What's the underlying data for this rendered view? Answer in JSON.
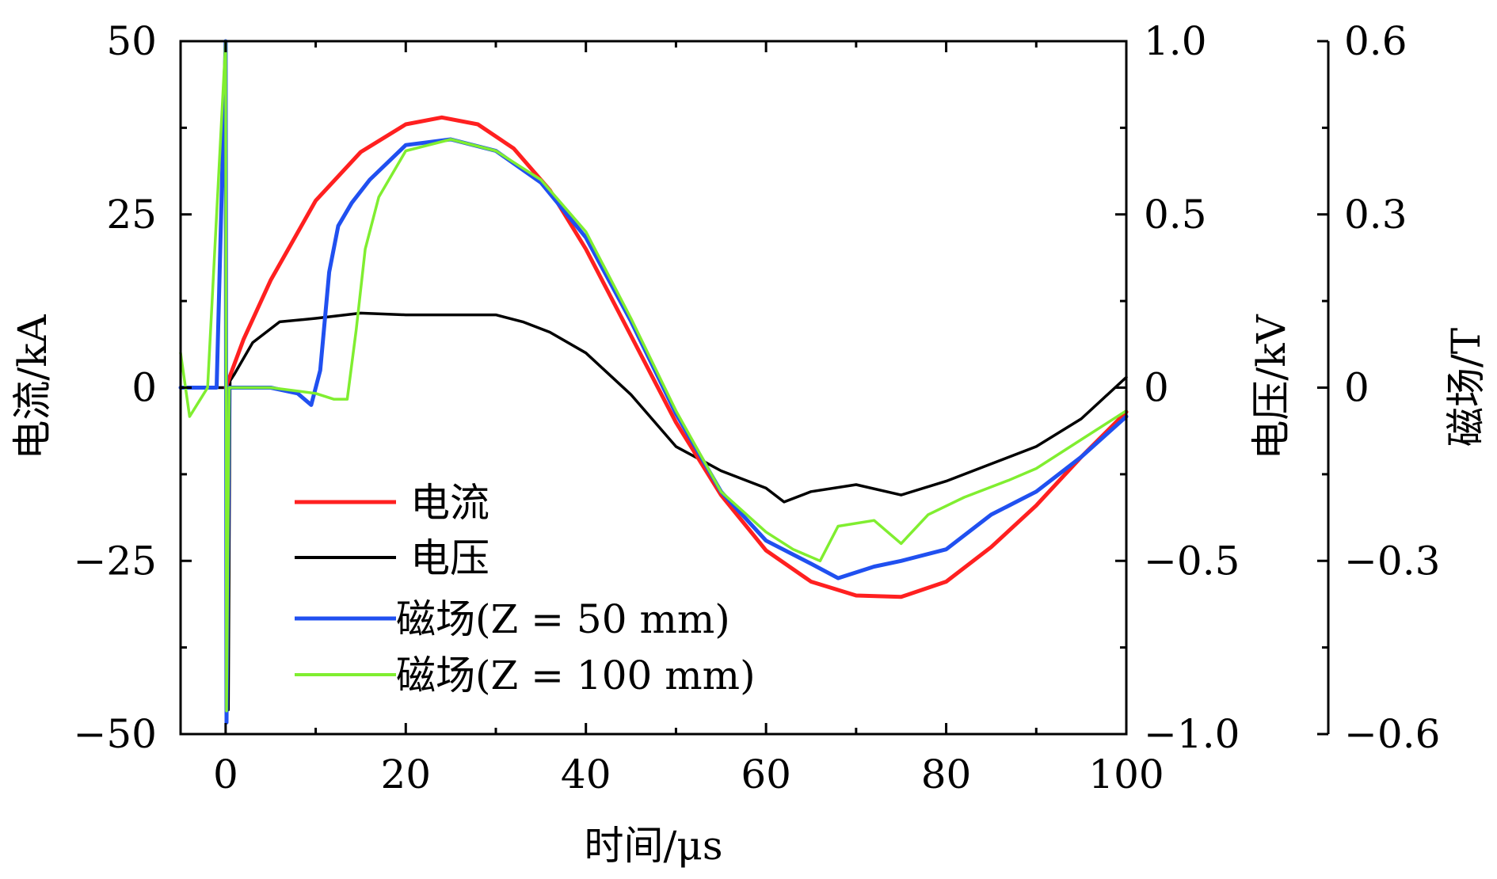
{
  "chart_data": {
    "type": "line",
    "xlabel": "时间/μs",
    "xlim": [
      -5,
      100
    ],
    "x_ticks": [
      "0",
      "20",
      "40",
      "60",
      "80",
      "100"
    ],
    "x_tick_values": [
      0,
      20,
      40,
      60,
      80,
      100
    ],
    "y_axes": [
      {
        "id": "current",
        "label": "电流/kA",
        "lim": [
          -50,
          50
        ],
        "tick_values": [
          -50,
          -25,
          0,
          25,
          50
        ],
        "tick_labels": [
          "−50",
          "−25",
          "0",
          "25",
          "50"
        ],
        "side": "left"
      },
      {
        "id": "voltage",
        "label": "电压/kV",
        "lim": [
          -1.0,
          1.0
        ],
        "tick_values": [
          -1.0,
          -0.5,
          0,
          0.5,
          1.0
        ],
        "tick_labels": [
          "−1.0",
          "−0.5",
          "0",
          "0.5",
          "1.0"
        ],
        "side": "right"
      },
      {
        "id": "field",
        "label": "磁场/T",
        "lim": [
          -0.6,
          0.6
        ],
        "tick_values": [
          -0.6,
          -0.3,
          0,
          0.3,
          0.6
        ],
        "tick_labels": [
          "−0.6",
          "−0.3",
          "0",
          "0.3",
          "0.6"
        ],
        "side": "right-offset"
      }
    ],
    "legend_position": "lower-left",
    "series": [
      {
        "name": "电流",
        "axis": "current",
        "color": "#ff2020",
        "x": [
          0,
          2,
          5,
          10,
          15,
          20,
          24,
          28,
          32,
          36,
          40,
          45,
          50,
          55,
          60,
          65,
          70,
          75,
          80,
          85,
          90,
          95,
          100
        ],
        "y": [
          0,
          7,
          15.5,
          27,
          34,
          38,
          39,
          38,
          34.5,
          28.5,
          20,
          7.5,
          -5,
          -15.5,
          -23.5,
          -28,
          -30,
          -30.2,
          -28,
          -23,
          -17,
          -10,
          -3.5
        ]
      },
      {
        "name": "电压",
        "axis": "voltage",
        "color": "#000000",
        "x": [
          -5,
          0,
          0.3,
          0.5,
          1,
          3,
          6,
          10,
          15,
          20,
          25,
          30,
          33,
          36,
          40,
          45,
          50,
          55,
          60,
          62,
          65,
          70,
          75,
          80,
          85,
          90,
          95,
          100
        ],
        "y": [
          0,
          0,
          -0.93,
          0.02,
          0.04,
          0.13,
          0.19,
          0.2,
          0.215,
          0.21,
          0.21,
          0.21,
          0.19,
          0.16,
          0.1,
          -0.02,
          -0.17,
          -0.24,
          -0.29,
          -0.33,
          -0.3,
          -0.28,
          -0.31,
          -0.27,
          -0.22,
          -0.17,
          -0.09,
          0.03
        ]
      },
      {
        "name": "磁场(Z = 50 mm)",
        "axis": "field",
        "color": "#2050f0",
        "x": [
          -5,
          -1,
          0,
          0.1,
          0.4,
          1,
          5,
          8,
          9.5,
          10.5,
          11.5,
          12.5,
          14,
          16,
          20,
          25,
          30,
          35,
          40,
          45,
          50,
          55,
          60,
          65,
          68,
          72,
          75,
          80,
          85,
          90,
          95,
          100
        ],
        "y": [
          0,
          0,
          0.6,
          -0.58,
          0,
          0,
          0,
          -0.01,
          -0.03,
          0.03,
          0.2,
          0.28,
          0.32,
          0.36,
          0.42,
          0.43,
          0.41,
          0.355,
          0.26,
          0.115,
          -0.045,
          -0.18,
          -0.265,
          -0.305,
          -0.33,
          -0.31,
          -0.3,
          -0.28,
          -0.22,
          -0.18,
          -0.12,
          -0.05
        ]
      },
      {
        "name": "磁场(Z = 100 mm)",
        "axis": "field",
        "color": "#80ee30",
        "x": [
          -5,
          -4,
          -2,
          0,
          0.1,
          0.4,
          1,
          5,
          10,
          12,
          13.5,
          14.5,
          15.5,
          17,
          20,
          25,
          30,
          35,
          40,
          45,
          50,
          55,
          60,
          63,
          66,
          68,
          72,
          75,
          78,
          82,
          87,
          90,
          95,
          100
        ],
        "y": [
          0.06,
          -0.05,
          0,
          0.6,
          -0.56,
          0,
          0,
          0,
          -0.01,
          -0.02,
          -0.02,
          0.1,
          0.24,
          0.33,
          0.41,
          0.43,
          0.41,
          0.36,
          0.27,
          0.12,
          -0.04,
          -0.18,
          -0.25,
          -0.28,
          -0.3,
          -0.24,
          -0.23,
          -0.27,
          -0.22,
          -0.19,
          -0.16,
          -0.14,
          -0.09,
          -0.04
        ]
      }
    ]
  }
}
